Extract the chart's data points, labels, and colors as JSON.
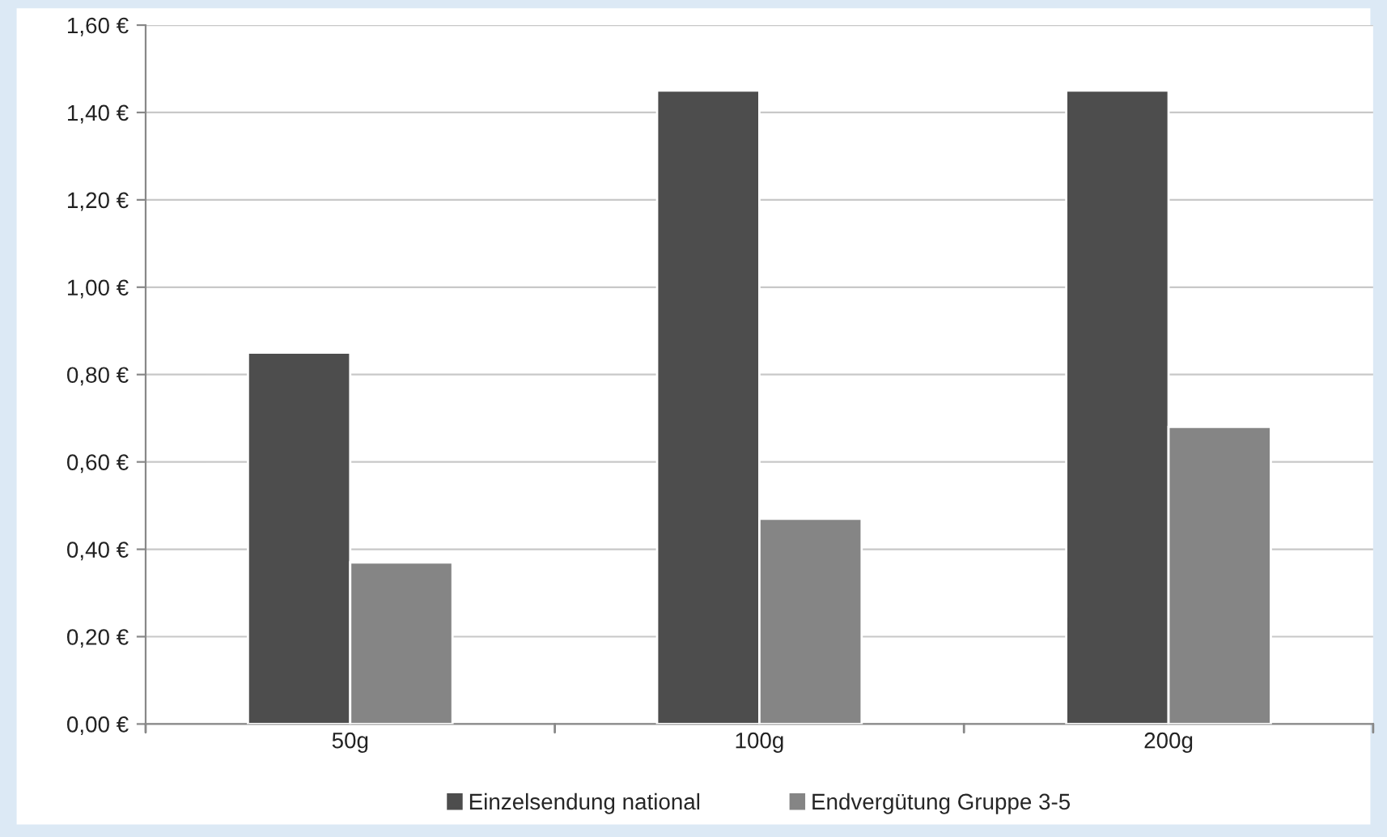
{
  "chart_data": {
    "type": "bar",
    "categories": [
      "50g",
      "100g",
      "200g"
    ],
    "series": [
      {
        "name": "Einzelsendung national",
        "color": "#4d4d4d",
        "values": [
          0.85,
          1.45,
          1.45
        ]
      },
      {
        "name": "Endvergütung Gruppe 3-5",
        "color": "#858585",
        "values": [
          0.37,
          0.47,
          0.68
        ]
      }
    ],
    "ylim": [
      0,
      1.6
    ],
    "yticks": [
      {
        "value": 0,
        "label": "0,00 €"
      },
      {
        "value": 0.2,
        "label": "0,20 €"
      },
      {
        "value": 0.4,
        "label": "0,40 €"
      },
      {
        "value": 0.6,
        "label": "0,60 €"
      },
      {
        "value": 0.8,
        "label": "0,80 €"
      },
      {
        "value": 1.0,
        "label": "1,00 €"
      },
      {
        "value": 1.2,
        "label": "1,20 €"
      },
      {
        "value": 1.4,
        "label": "1,40 €"
      },
      {
        "value": 1.6,
        "label": "1,60 €"
      }
    ],
    "grid": "y",
    "legend": "bottom"
  }
}
